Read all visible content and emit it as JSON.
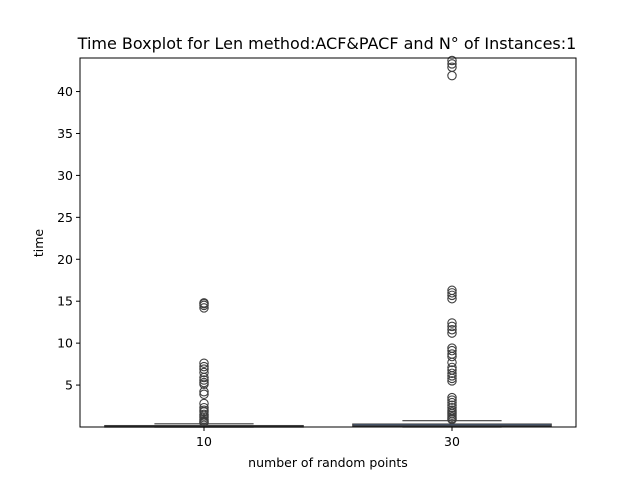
{
  "chart_data": {
    "type": "boxplot",
    "title": "Time Boxplot for Len method:ACF&PACF and N° of Instances:1",
    "xlabel": "number of random points",
    "ylabel": "time",
    "categories": [
      "10",
      "30"
    ],
    "ylim": [
      0,
      44
    ],
    "yticks": [
      "5",
      "10",
      "15",
      "20",
      "25",
      "30",
      "35",
      "40"
    ],
    "grid": false,
    "box_color": "#4c72b0",
    "boxes": [
      {
        "category": "10",
        "q1": 0.03,
        "median": 0.08,
        "q3": 0.17,
        "whisker_low": 0.0,
        "whisker_high": 0.38,
        "outliers": [
          14.2,
          14.5,
          14.7,
          14.8,
          7.6,
          7.2,
          6.9,
          6.5,
          5.9,
          5.6,
          5.3,
          5.1,
          4.2,
          3.9,
          2.8,
          2.3,
          2.0,
          1.8,
          1.5,
          1.3,
          1.1,
          0.9,
          0.7,
          0.6,
          0.5
        ]
      },
      {
        "category": "30",
        "q1": 0.05,
        "median": 0.15,
        "q3": 0.35,
        "whisker_low": 0.0,
        "whisker_high": 0.75,
        "outliers": [
          43.7,
          43.3,
          42.9,
          41.9,
          16.3,
          16.0,
          15.7,
          15.3,
          12.4,
          12.0,
          11.6,
          11.2,
          9.4,
          9.1,
          8.7,
          8.4,
          7.7,
          7.1,
          6.8,
          6.4,
          6.1,
          5.8,
          5.5,
          3.5,
          3.2,
          2.9,
          2.6,
          2.3,
          2.0,
          1.8,
          1.6,
          1.4,
          1.2,
          1.0,
          0.9
        ]
      }
    ]
  }
}
